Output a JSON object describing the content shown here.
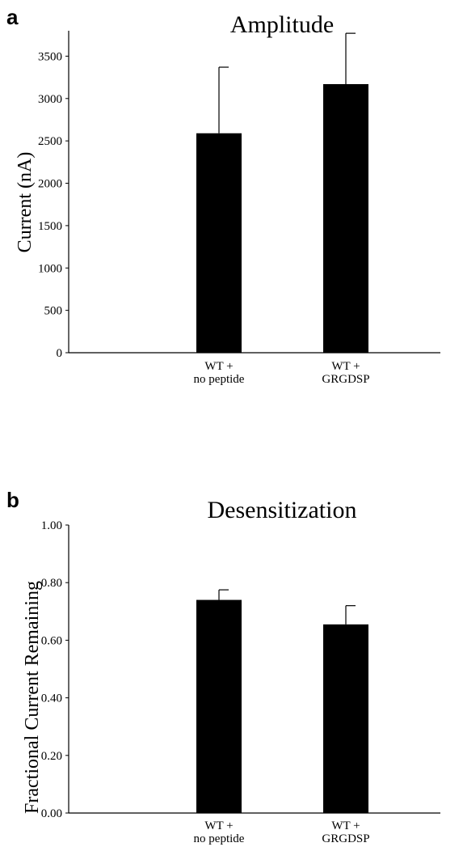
{
  "chart_data": [
    {
      "panel": "a",
      "type": "bar",
      "title": "Amplitude",
      "xlabel": "",
      "ylabel": "Current (nA)",
      "categories": [
        [
          "WT +",
          "no peptide"
        ],
        [
          "WT +",
          "GRGDSP"
        ]
      ],
      "values": [
        2590,
        3170
      ],
      "errors": [
        780,
        600
      ],
      "ylim": [
        0,
        3800
      ],
      "yticks": [
        "0",
        "500",
        "1000",
        "1500",
        "2000",
        "2500",
        "3000",
        "3500"
      ],
      "ytick_values": [
        0,
        500,
        1000,
        1500,
        2000,
        2500,
        3000,
        3500
      ],
      "grid": false,
      "bar_color": "#000000"
    },
    {
      "panel": "b",
      "type": "bar",
      "title": "Desensitization",
      "xlabel": "",
      "ylabel": "Fractional Current Remaining",
      "categories": [
        [
          "WT +",
          "no peptide"
        ],
        [
          "WT +",
          "GRGDSP"
        ]
      ],
      "values": [
        0.74,
        0.655
      ],
      "errors": [
        0.035,
        0.065
      ],
      "ylim": [
        0,
        1.0
      ],
      "yticks": [
        "0.00",
        "0.20",
        "0.40",
        "0.60",
        "0.80",
        "1.00"
      ],
      "ytick_values": [
        0,
        0.2,
        0.4,
        0.6,
        0.8,
        1.0
      ],
      "grid": false,
      "bar_color": "#000000"
    }
  ]
}
